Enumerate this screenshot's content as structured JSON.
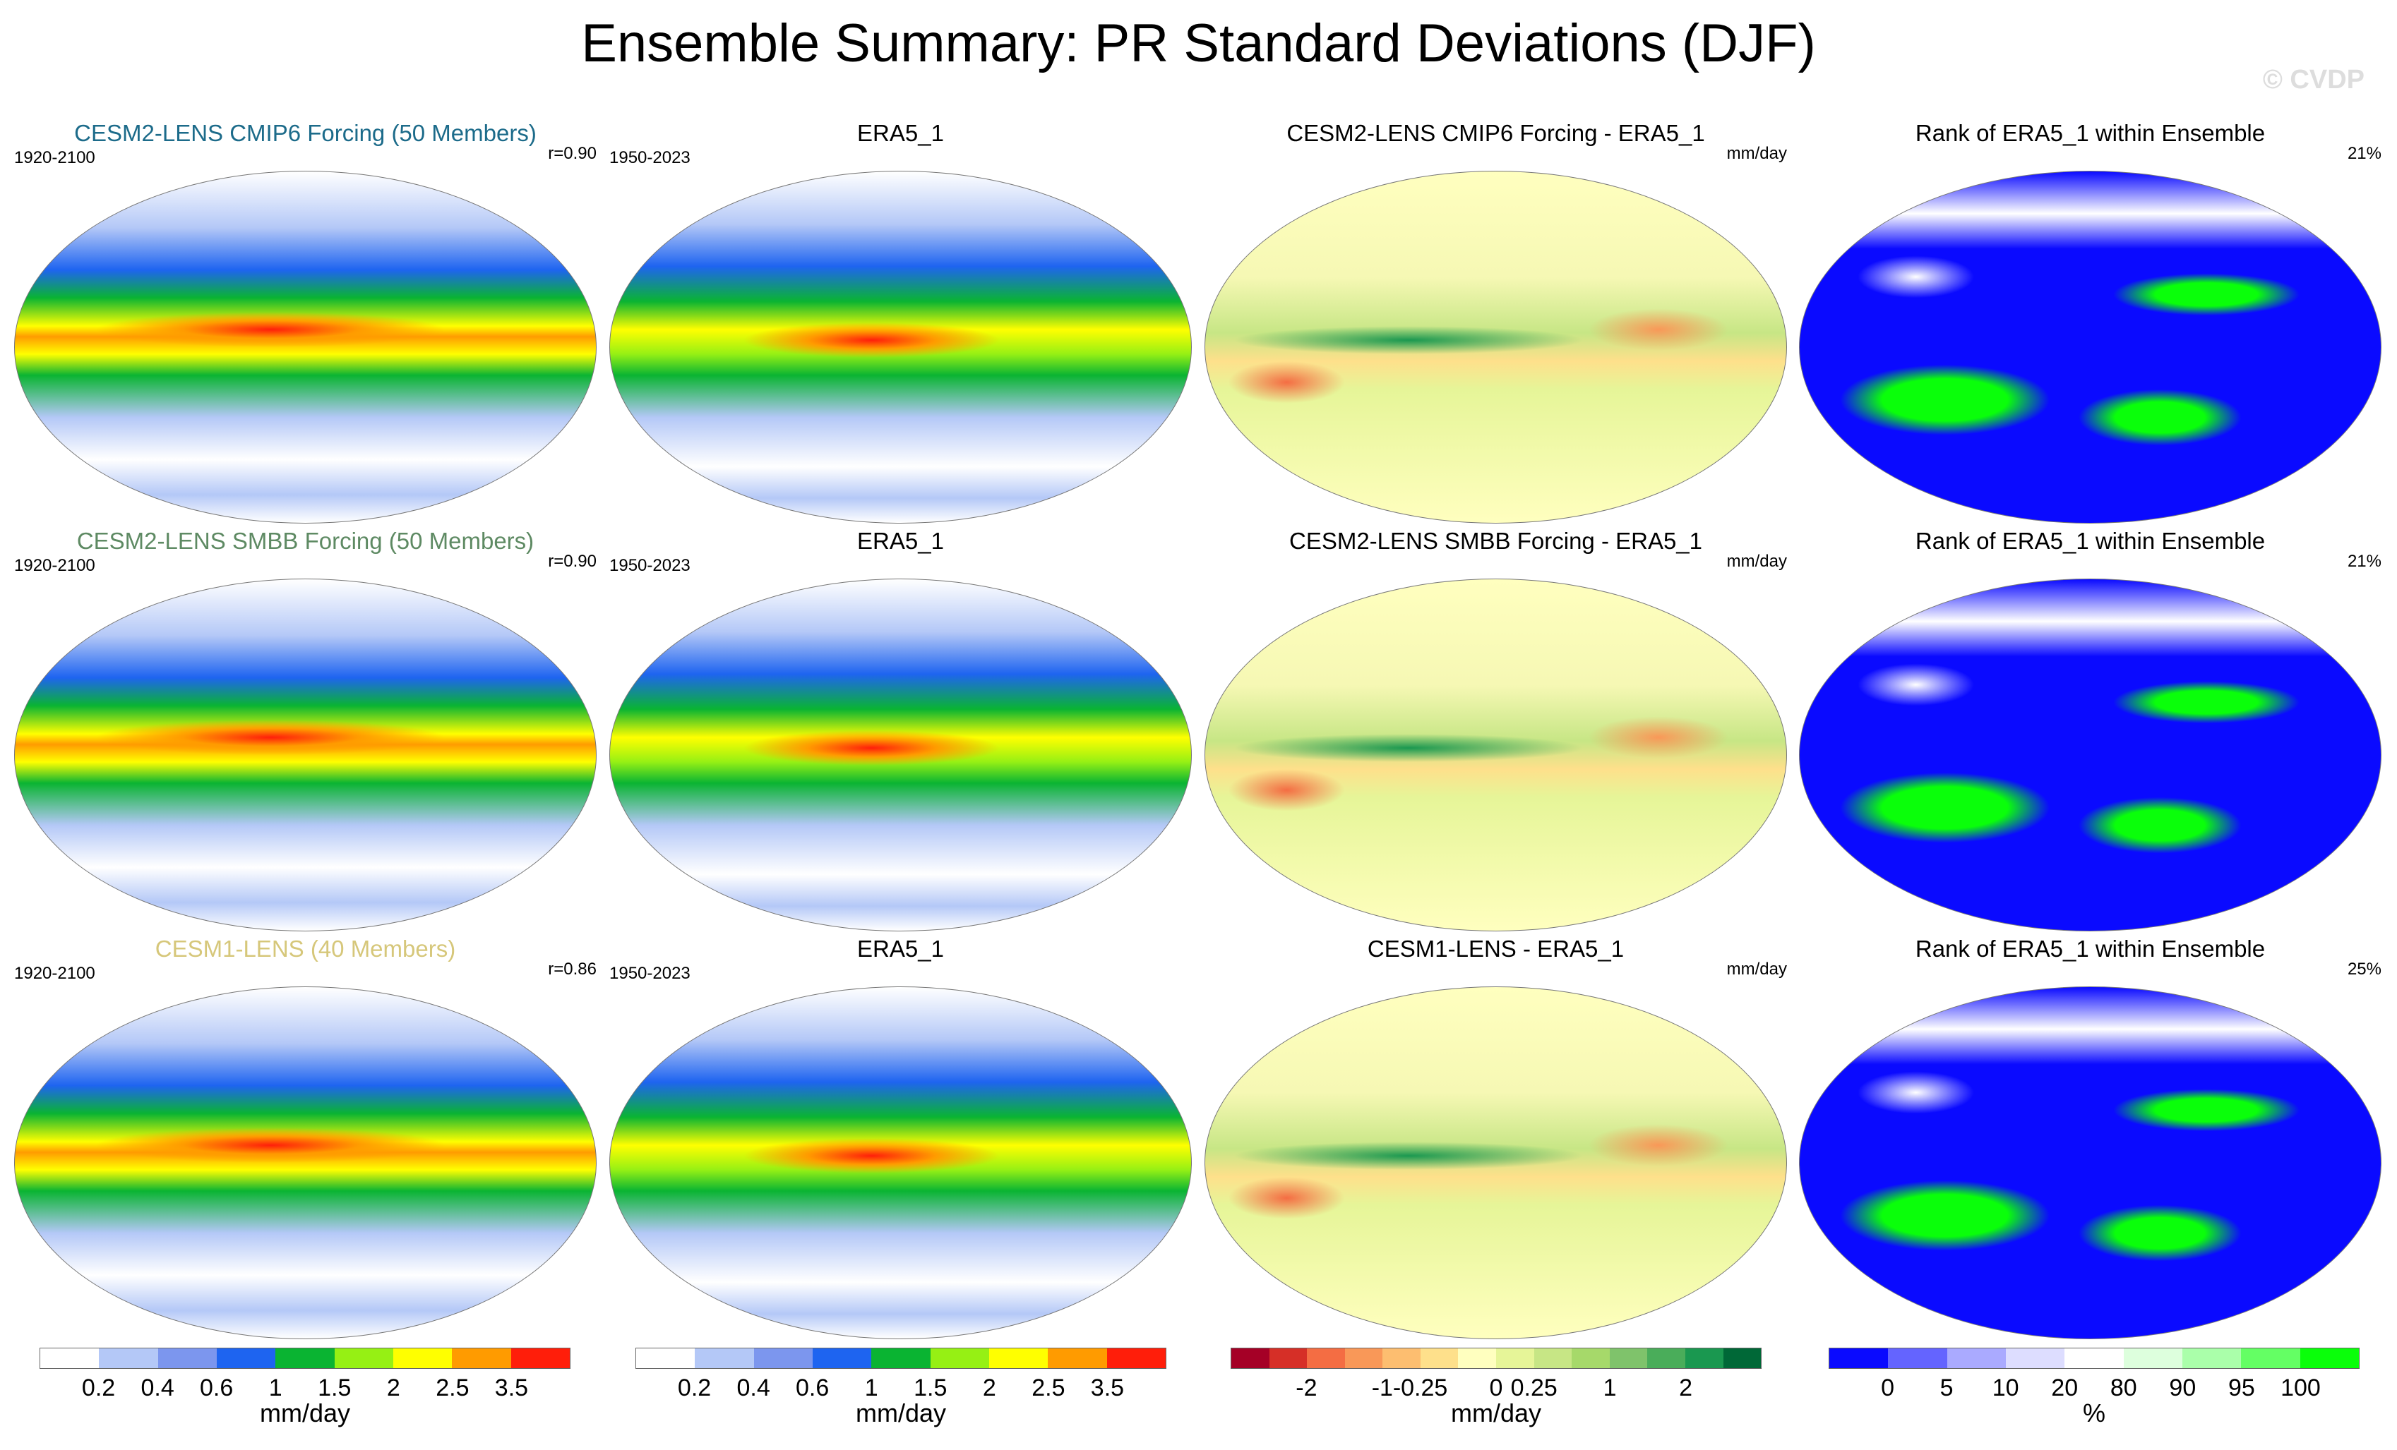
{
  "title": "Ensemble Summary: PR Standard Deviations (DJF)",
  "watermark": "© CVDP",
  "rows": [
    {
      "model": {
        "title": "CESM2-LENS CMIP6 Forcing (50 Members)",
        "title_color": "#1c6b8a",
        "years": "1920-2100",
        "corr": "r=0.90"
      },
      "obs": {
        "title": "ERA5_1",
        "years": "1950-2023"
      },
      "diff": {
        "title": "CESM2-LENS CMIP6 Forcing - ERA5_1",
        "unit": "mm/day"
      },
      "rank": {
        "title": "Rank of ERA5_1 within Ensemble",
        "pct": "21%"
      }
    },
    {
      "model": {
        "title": "CESM2-LENS SMBB Forcing (50 Members)",
        "title_color": "#5e8a63",
        "years": "1920-2100",
        "corr": "r=0.90"
      },
      "obs": {
        "title": "ERA5_1",
        "years": "1950-2023"
      },
      "diff": {
        "title": "CESM2-LENS SMBB Forcing - ERA5_1",
        "unit": "mm/day"
      },
      "rank": {
        "title": "Rank of ERA5_1 within Ensemble",
        "pct": "21%"
      }
    },
    {
      "model": {
        "title": "CESM1-LENS (40 Members)",
        "title_color": "#d6c77a",
        "years": "1920-2100",
        "corr": "r=0.86"
      },
      "obs": {
        "title": "ERA5_1",
        "years": "1950-2023"
      },
      "diff": {
        "title": "CESM1-LENS - ERA5_1",
        "unit": "mm/day"
      },
      "rank": {
        "title": "Rank of ERA5_1 within Ensemble",
        "pct": "25%"
      }
    }
  ],
  "colorbars": [
    {
      "colors": [
        "#ffffff",
        "#b4c8f7",
        "#7c96ee",
        "#1e64f0",
        "#0ab432",
        "#96f014",
        "#ffff00",
        "#ff9b00",
        "#ff1e0a"
      ],
      "ticks": [
        "0.2",
        "0.4",
        "0.6",
        "1",
        "1.5",
        "2",
        "2.5",
        "3.5"
      ],
      "tick_bounds": [
        1,
        2,
        3,
        4,
        5,
        6,
        7,
        8
      ],
      "unit": "mm/day"
    },
    {
      "colors": [
        "#ffffff",
        "#b4c8f7",
        "#7c96ee",
        "#1e64f0",
        "#0ab432",
        "#96f014",
        "#ffff00",
        "#ff9b00",
        "#ff1e0a"
      ],
      "ticks": [
        "0.2",
        "0.4",
        "0.6",
        "1",
        "1.5",
        "2",
        "2.5",
        "3.5"
      ],
      "tick_bounds": [
        1,
        2,
        3,
        4,
        5,
        6,
        7,
        8
      ],
      "unit": "mm/day"
    },
    {
      "colors": [
        "#a50026",
        "#d62f27",
        "#f46d43",
        "#f99858",
        "#fdbe70",
        "#fee08b",
        "#ffffbf",
        "#e6f598",
        "#c7e685",
        "#a6d96a",
        "#7fc36b",
        "#4aad5a",
        "#1a9850",
        "#006837"
      ],
      "ticks": [
        "-2",
        "-1",
        "-0.25",
        "0",
        "0.25",
        "1",
        "2"
      ],
      "tick_bounds": [
        2,
        4,
        5,
        7,
        8,
        10,
        12
      ],
      "unit": "mm/day"
    },
    {
      "colors": [
        "#0a0aff",
        "#6464ff",
        "#aaaaff",
        "#ddddff",
        "#ffffff",
        "#ddffdd",
        "#aaffaa",
        "#64ff64",
        "#0aff0a"
      ],
      "ticks": [
        "0",
        "5",
        "10",
        "20",
        "80",
        "90",
        "95",
        "100"
      ],
      "tick_bounds": [
        1,
        2,
        3,
        4,
        5,
        6,
        7,
        8
      ],
      "unit": "%"
    }
  ]
}
